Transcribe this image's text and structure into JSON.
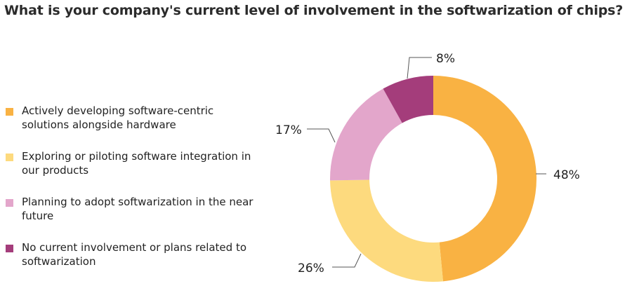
{
  "chart_data": {
    "type": "pie",
    "donut": true,
    "title": "What is your company's current level of involvement in the softwarization of chips?",
    "legend_position": "left",
    "categories": [
      "Actively developing software-centric solutions alongside hardware",
      "Exploring or piloting software integration in our products",
      "Planning to adopt softwarization in the near future",
      "No current involvement or plans related to softwarization"
    ],
    "values": [
      48,
      26,
      17,
      8
    ],
    "data_labels": [
      "48%",
      "26%",
      "17%",
      "8%"
    ],
    "colors": [
      "#F9B243",
      "#FDDA7E",
      "#E3A6CB",
      "#A43D7B"
    ]
  }
}
